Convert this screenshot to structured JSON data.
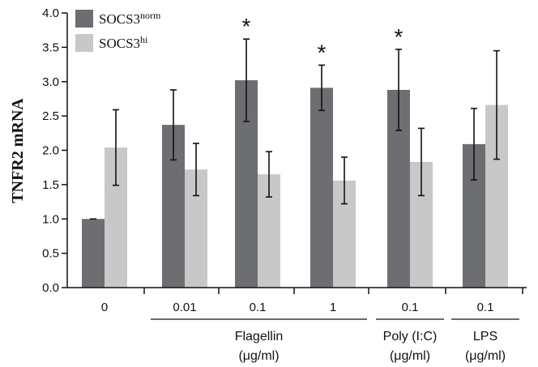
{
  "chart_data": {
    "type": "bar",
    "title": "",
    "ylabel": "TNFR2 mRNA",
    "xlabel": "",
    "ylim": [
      0,
      4.0
    ],
    "yticks": [
      "0.0",
      "0.5",
      "1.0",
      "1.5",
      "2.0",
      "2.5",
      "3.0",
      "3.5",
      "4.0"
    ],
    "categories": [
      "0",
      "0.01",
      "0.1",
      "1",
      "0.1",
      "0.1"
    ],
    "series": [
      {
        "name": "SOCS3",
        "name_sup": "norm",
        "color": "#6d6e71",
        "values": [
          1.0,
          2.37,
          3.02,
          2.91,
          2.88,
          2.09
        ],
        "errors": [
          0.0,
          0.51,
          0.6,
          0.33,
          0.59,
          0.52
        ]
      },
      {
        "name": "SOCS3",
        "name_sup": "hi",
        "color": "#c8c8c8",
        "values": [
          2.04,
          1.72,
          1.65,
          1.56,
          1.83,
          2.66
        ],
        "errors": [
          0.55,
          0.38,
          0.33,
          0.34,
          0.49,
          0.79
        ]
      }
    ],
    "significance": [
      "",
      "",
      "*",
      "*",
      "*",
      ""
    ],
    "groups": [
      {
        "label": "Flagellin",
        "unit": "(μg/ml)",
        "from": 1,
        "to": 3
      },
      {
        "label": "Poly (I:C)",
        "unit": "(μg/ml)",
        "from": 4,
        "to": 4
      },
      {
        "label": "LPS",
        "unit": "(μg/ml)",
        "from": 5,
        "to": 5
      }
    ],
    "legend_position": "top-left",
    "grid": false
  }
}
